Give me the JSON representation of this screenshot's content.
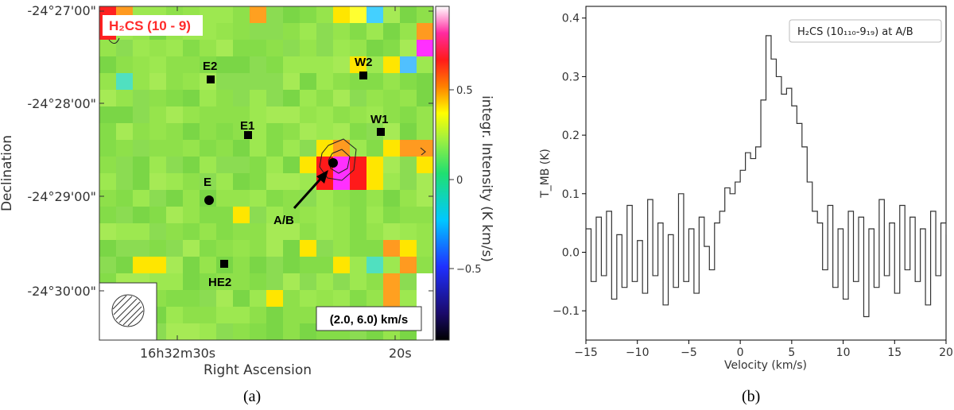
{
  "panel_a": {
    "caption": "(a)",
    "map_label": "H₂CS (10 - 9)",
    "velocity_range_label": "(2.0, 6.0) km/s",
    "colorbar_label": "integr. Intensity (K km/s)",
    "colorbar_ticks": [
      "0.5",
      "0",
      "−0.5"
    ],
    "dec_label": "Declination",
    "dec_ticks": [
      "-24°27'00\"",
      "-24°28'00\"",
      "-24°29'00\"",
      "-24°30'00\""
    ],
    "ra_label": "Right Ascension",
    "ra_ticks": [
      "16h32m30s",
      "20s"
    ],
    "sources": [
      {
        "name": "E2",
        "marker": "square"
      },
      {
        "name": "W2",
        "marker": "square"
      },
      {
        "name": "E1",
        "marker": "square"
      },
      {
        "name": "W1",
        "marker": "square"
      },
      {
        "name": "E",
        "marker": "circle"
      },
      {
        "name": "A/B",
        "marker": "circle"
      },
      {
        "name": "HE2",
        "marker": "square"
      }
    ],
    "colors": {
      "label_red": "#ff2a2a",
      "background_green": "#8ee04a"
    }
  },
  "panel_b": {
    "caption": "(b)",
    "legend": "H₂CS (10₁₁₀-9₁₉) at A/B",
    "xlabel": "Velocity (km/s)",
    "ylabel": "T_MB (K)"
  },
  "chart_data": {
    "type": "line",
    "title": "H₂CS (10₁₁₀-9₁₉) at A/B",
    "xlabel": "Velocity (km/s)",
    "ylabel": "T_MB (K)",
    "xlim": [
      -15,
      20
    ],
    "ylim": [
      -0.15,
      0.42
    ],
    "x_ticks": [
      -15,
      -10,
      -5,
      0,
      5,
      10,
      15,
      20
    ],
    "y_ticks": [
      -0.1,
      0.0,
      0.1,
      0.2,
      0.3,
      0.4
    ],
    "series": [
      {
        "name": "H₂CS (10₁₁₀-9₁₉) at A/B",
        "x": [
          -15,
          -14.5,
          -14,
          -13.5,
          -13,
          -12.5,
          -12,
          -11.5,
          -11,
          -10.5,
          -10,
          -9.5,
          -9,
          -8.5,
          -8,
          -7.5,
          -7,
          -6.5,
          -6,
          -5.5,
          -5,
          -4.5,
          -4,
          -3.5,
          -3,
          -2.5,
          -2,
          -1.5,
          -1,
          -0.5,
          0,
          0.5,
          1,
          1.5,
          2,
          2.5,
          3,
          3.5,
          4,
          4.5,
          5,
          5.5,
          6,
          6.5,
          7,
          7.5,
          8,
          8.5,
          9,
          9.5,
          10,
          10.5,
          11,
          11.5,
          12,
          12.5,
          13,
          13.5,
          14,
          14.5,
          15,
          15.5,
          16,
          16.5,
          17,
          17.5,
          18,
          18.5,
          19,
          19.5,
          20
        ],
        "values": [
          0.04,
          -0.05,
          0.06,
          -0.04,
          0.07,
          -0.08,
          0.03,
          -0.06,
          0.08,
          -0.05,
          0.02,
          -0.07,
          0.09,
          -0.04,
          0.05,
          -0.09,
          0.03,
          -0.06,
          0.1,
          -0.05,
          0.04,
          -0.07,
          0.06,
          0.01,
          -0.03,
          0.05,
          0.07,
          0.11,
          0.1,
          0.12,
          0.14,
          0.17,
          0.16,
          0.18,
          0.26,
          0.37,
          0.33,
          0.3,
          0.27,
          0.28,
          0.25,
          0.22,
          0.18,
          0.12,
          0.07,
          0.05,
          -0.03,
          0.08,
          -0.06,
          0.04,
          -0.08,
          0.07,
          -0.05,
          0.06,
          -0.11,
          0.04,
          -0.06,
          0.09,
          -0.04,
          0.05,
          -0.07,
          0.08,
          -0.03,
          0.06,
          -0.05,
          0.04,
          -0.09,
          0.07,
          -0.04,
          0.05,
          0.03
        ]
      }
    ]
  }
}
